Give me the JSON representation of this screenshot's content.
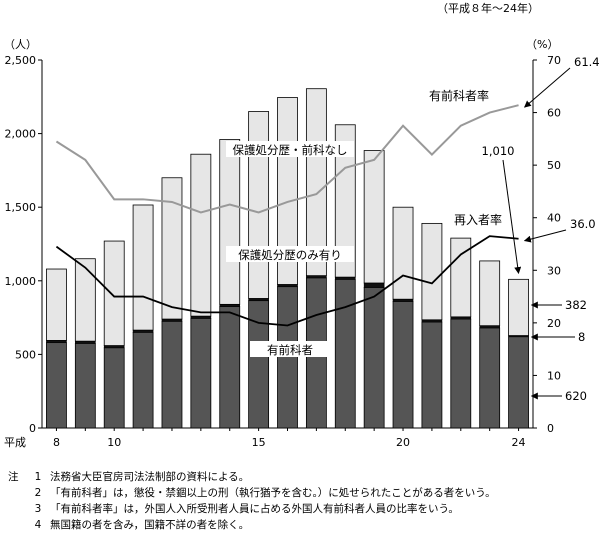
{
  "chart_data": {
    "type": "bar",
    "range_note": "（平成８年～24年）",
    "left_axis_unit": "（人）",
    "right_axis_unit": "（%）",
    "x_prefix": "平成",
    "x": [
      8,
      9,
      10,
      11,
      12,
      13,
      14,
      15,
      16,
      17,
      18,
      19,
      20,
      21,
      22,
      23,
      24
    ],
    "x_tick_labels": [
      "8",
      "10",
      "15",
      "20",
      "24"
    ],
    "ylim": [
      0,
      2500
    ],
    "y_ticks": [
      "0",
      "500",
      "1,000",
      "1,500",
      "2,000",
      "2,500"
    ],
    "y2lim": [
      0,
      70
    ],
    "y2_ticks": [
      "0",
      "10",
      "20",
      "30",
      "40",
      "50",
      "60",
      "70"
    ],
    "series": [
      {
        "name": "有前科者",
        "kind": "bar-bottom",
        "color": "#555555",
        "values": [
          580,
          575,
          545,
          650,
          725,
          745,
          825,
          865,
          960,
          1020,
          1010,
          955,
          860,
          720,
          740,
          680,
          620
        ]
      },
      {
        "kind": "bar-middle",
        "color": "#111111",
        "values": [
          15,
          15,
          15,
          15,
          15,
          15,
          15,
          15,
          15,
          15,
          15,
          30,
          15,
          15,
          15,
          15,
          8
        ]
      },
      {
        "name": "保護処分歴のみ有り",
        "kind": "bar-top",
        "color": "#e6e6e6",
        "values": [
          485,
          560,
          710,
          850,
          960,
          1100,
          1120,
          1270,
          1270,
          1270,
          1035,
          900,
          625,
          655,
          535,
          440,
          382
        ]
      },
      {
        "name": "有前科者率",
        "kind": "line-right",
        "color": "#999999",
        "values": [
          54.5,
          51,
          43.5,
          43.5,
          43,
          41,
          42.5,
          41,
          43,
          44.5,
          49.5,
          51,
          57.5,
          52,
          57.5,
          60,
          61.4
        ]
      },
      {
        "name": "再入者率",
        "kind": "line-right",
        "color": "#000000",
        "values": [
          34.5,
          30.5,
          25,
          25,
          23,
          22,
          22,
          20,
          19.5,
          21.5,
          23,
          25,
          29,
          27.5,
          33,
          36.5,
          36
        ]
      }
    ],
    "annotations": {
      "rate_prior_label": "有前科者率",
      "rate_prior_value": "61.4",
      "rate_reentry_label": "再入者率",
      "rate_reentry_value": "36.0",
      "total_value": "1,010",
      "no_disposition_label": "保護処分歴・前科なし",
      "juvenile_only_label": "保護処分歴のみ有り",
      "prior_label": "有前科者",
      "val_382": "382",
      "val_8": "8",
      "val_620": "620"
    }
  },
  "notes": {
    "label": "注",
    "items": [
      {
        "num": "1",
        "text": "法務省大臣官房司法法制部の資料による。"
      },
      {
        "num": "2",
        "text": "「有前科者」は，懲役・禁錮以上の刑（執行猶予を含む。）に処せられたことがある者をいう。"
      },
      {
        "num": "3",
        "text": "「有前科者率」は，外国人入所受刑者人員に占める外国人有前科者人員の比率をいう。"
      },
      {
        "num": "4",
        "text": "無国籍の者を含み，国籍不詳の者を除く。"
      }
    ]
  }
}
